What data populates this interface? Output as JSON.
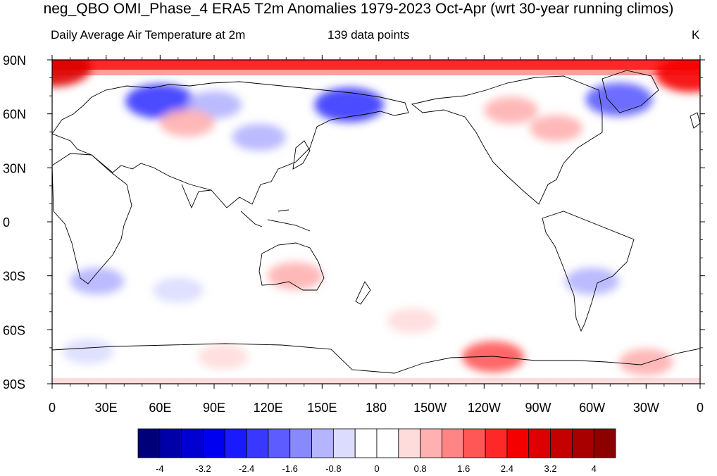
{
  "title": "neg_QBO OMI_Phase_4 ERA5 T2m Anomalies 1979-2023 Oct-Apr (wrt 30-year running climos)",
  "subtitle_left": "Daily Average Air Temperature at 2m",
  "subtitle_center": "139 data points",
  "units": "K",
  "lat_labels": [
    "90N",
    "60N",
    "30N",
    "0",
    "30S",
    "60S",
    "90S"
  ],
  "lon_labels": [
    "0",
    "30E",
    "60E",
    "90E",
    "120E",
    "150E",
    "180",
    "150W",
    "120W",
    "90W",
    "60W",
    "30W",
    "0"
  ],
  "colorbar": {
    "colors": [
      "#00007a",
      "#0000a8",
      "#0000d0",
      "#0000f0",
      "#1a1aff",
      "#3838ff",
      "#5c5cff",
      "#8888ff",
      "#b4b4ff",
      "#dcdcff",
      "#ffffff",
      "#ffffff",
      "#ffdcdc",
      "#ffb0b0",
      "#ff8484",
      "#ff5656",
      "#ff2828",
      "#f50000",
      "#dc0000",
      "#c40000",
      "#a80000",
      "#8c0000"
    ],
    "labels": [
      "-4",
      "-3.2",
      "-2.4",
      "-1.6",
      "-0.8",
      "0",
      "0.8",
      "1.6",
      "2.4",
      "3.2",
      "4"
    ]
  },
  "anomaly_blobs": [
    {
      "lon": 60,
      "lat": 67,
      "value": -2.2
    },
    {
      "lon": 90,
      "lat": 65,
      "value": -1.0
    },
    {
      "lon": 115,
      "lat": 47,
      "value": -0.9
    },
    {
      "lon": 165,
      "lat": 65,
      "value": -2.2
    },
    {
      "lon": 315,
      "lat": 68,
      "value": -2.0
    },
    {
      "lon": 75,
      "lat": 55,
      "value": 1.0
    },
    {
      "lon": 255,
      "lat": 62,
      "value": 0.9
    },
    {
      "lon": 280,
      "lat": 52,
      "value": 0.8
    },
    {
      "lon": 0,
      "lat": 86,
      "value": 3.0
    },
    {
      "lon": 355,
      "lat": 82,
      "value": 2.4
    },
    {
      "lon": 25,
      "lat": -33,
      "value": -0.9
    },
    {
      "lon": 135,
      "lat": -30,
      "value": 1.0
    },
    {
      "lon": 300,
      "lat": -33,
      "value": -0.9
    },
    {
      "lon": 70,
      "lat": -38,
      "value": -0.6
    },
    {
      "lon": 245,
      "lat": -75,
      "value": 1.6
    },
    {
      "lon": 330,
      "lat": -78,
      "value": 0.9
    },
    {
      "lon": 20,
      "lat": -72,
      "value": -0.6
    },
    {
      "lon": 95,
      "lat": -75,
      "value": 0.6
    },
    {
      "lon": 200,
      "lat": -55,
      "value": 0.6
    }
  ]
}
